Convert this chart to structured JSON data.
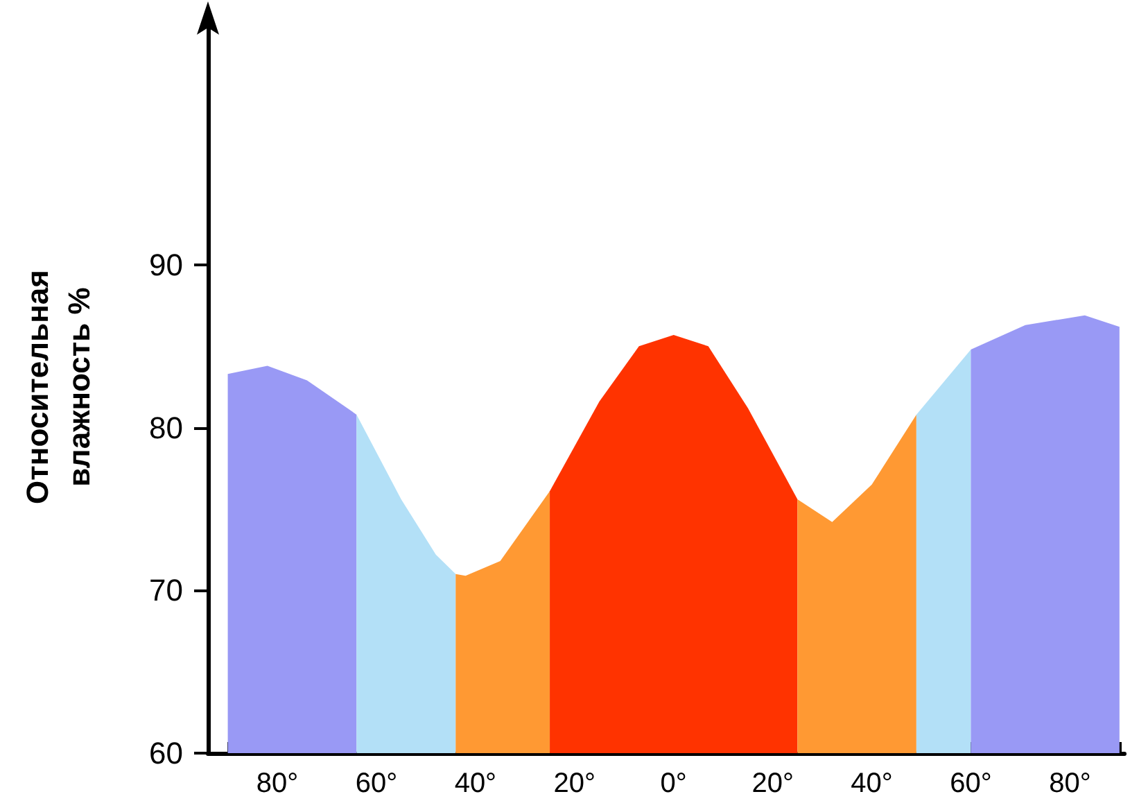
{
  "chart_data": {
    "type": "area",
    "ylabel": "Относительная\nвлажность %",
    "xlim": [
      -94,
      91
    ],
    "ylim": [
      60,
      105
    ],
    "xticks": [
      {
        "value": -90,
        "label": null
      },
      {
        "value": -80,
        "label": "80°"
      },
      {
        "value": -70,
        "label": null
      },
      {
        "value": -60,
        "label": "60°"
      },
      {
        "value": -50,
        "label": null
      },
      {
        "value": -40,
        "label": "40°"
      },
      {
        "value": -30,
        "label": null
      },
      {
        "value": -20,
        "label": "20°"
      },
      {
        "value": -10,
        "label": null
      },
      {
        "value": 0,
        "label": "0°"
      },
      {
        "value": 10,
        "label": null
      },
      {
        "value": 20,
        "label": "20°"
      },
      {
        "value": 30,
        "label": null
      },
      {
        "value": 40,
        "label": "40°"
      },
      {
        "value": 50,
        "label": null
      },
      {
        "value": 60,
        "label": "60°"
      },
      {
        "value": 70,
        "label": null
      },
      {
        "value": 80,
        "label": "80°"
      },
      {
        "value": 90,
        "label": null
      }
    ],
    "yticks": [
      60,
      70,
      80,
      90
    ],
    "grid": false,
    "marker": "none",
    "series": [
      {
        "color": "#9999f5",
        "x": [
          -90,
          -82,
          -74,
          -64
        ],
        "values": [
          83.3,
          83.8,
          82.9,
          80.8
        ]
      },
      {
        "color": "#b3e0f7",
        "x": [
          -64,
          -55,
          -48,
          -44
        ],
        "values": [
          80.8,
          75.6,
          72.2,
          71
        ]
      },
      {
        "color": "#ff9933",
        "x": [
          -44,
          -42,
          -35,
          -25
        ],
        "values": [
          71,
          70.9,
          71.8,
          76.1
        ]
      },
      {
        "color": "#ff3300",
        "x": [
          -25,
          -15,
          -7,
          0,
          7,
          15,
          25
        ],
        "values": [
          76.1,
          81.6,
          85,
          85.7,
          85,
          81.2,
          75.6
        ]
      },
      {
        "color": "#ff9933",
        "x": [
          25,
          32,
          40,
          49
        ],
        "values": [
          75.6,
          74.2,
          76.5,
          80.8
        ]
      },
      {
        "color": "#b3e0f7",
        "x": [
          49,
          60
        ],
        "values": [
          80.8,
          84.8
        ]
      },
      {
        "color": "#9999f5",
        "x": [
          60,
          71,
          83,
          90
        ],
        "values": [
          84.8,
          86.3,
          86.9,
          86.2
        ]
      }
    ]
  }
}
